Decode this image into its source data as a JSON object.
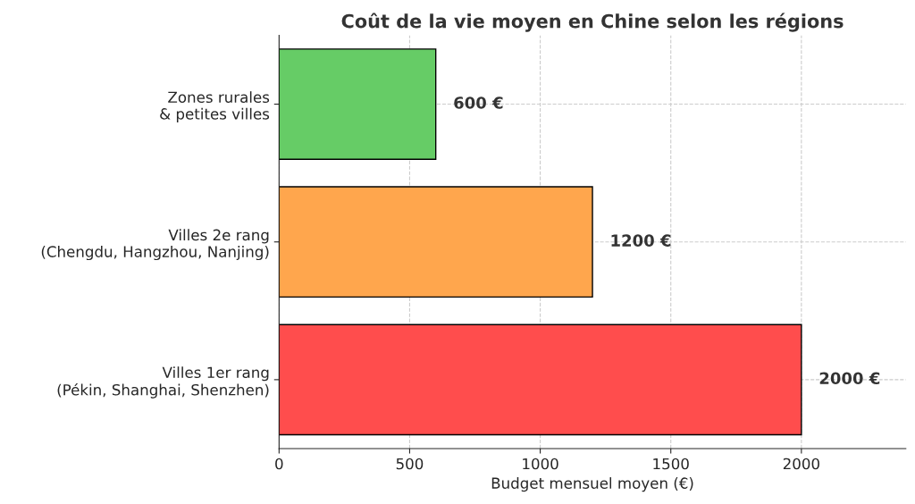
{
  "chart_data": {
    "type": "bar",
    "orientation": "horizontal",
    "title": "Coût de la vie moyen en Chine selon les régions",
    "xlabel": "Budget mensuel moyen (€)",
    "categories": [
      "Zones rurales\n& petites villes",
      "Villes 2e rang\n(Chengdu, Hangzhou, Nanjing)",
      "Villes 1er rang\n(Pékin, Shanghai, Shenzhen)"
    ],
    "values": [
      600,
      1200,
      2000
    ],
    "colors": [
      "#66cc66",
      "#ffa64d",
      "#ff4d4d"
    ],
    "value_labels": [
      "600 €",
      "1200 €",
      "2000 €"
    ],
    "xlim": [
      0,
      2400
    ],
    "xticks": [
      0,
      500,
      1000,
      1500,
      2000
    ],
    "grid": true
  }
}
